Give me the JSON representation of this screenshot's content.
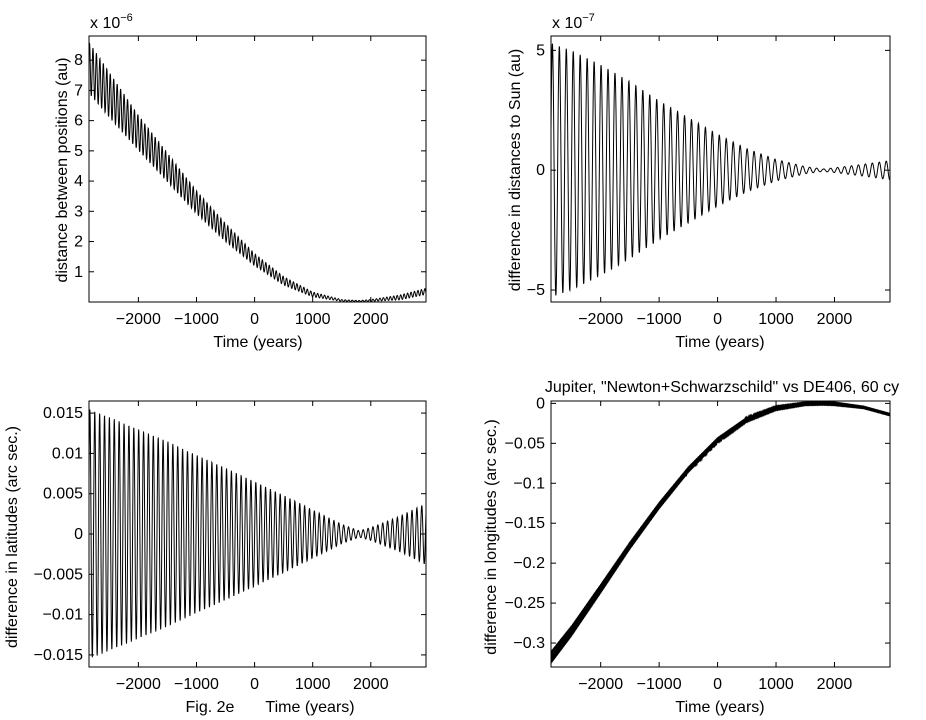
{
  "figure": {
    "caption": "Fig. 2e"
  },
  "chart_data": [
    {
      "id": "a",
      "type": "line",
      "title": "",
      "xlabel": "Time (years)",
      "ylabel": "distance between positions (au)",
      "xlim": [
        -2850,
        2950
      ],
      "ylim": [
        0,
        8.8
      ],
      "xticks": [
        -2000,
        -1000,
        0,
        1000,
        2000
      ],
      "yticks": [
        1,
        2,
        3,
        4,
        5,
        6,
        7,
        8
      ],
      "xtick_labels": [
        "−2000",
        "−1000",
        "0",
        "1000",
        "2000"
      ],
      "ytick_labels": [
        "1",
        "2",
        "3",
        "4",
        "5",
        "6",
        "7",
        "8"
      ],
      "exponent": {
        "base": "x 10",
        "power": "−6"
      },
      "oscillation_period_years": 59.5,
      "envelope": {
        "x": [
          -2850,
          -2500,
          -2000,
          -1500,
          -1000,
          -500,
          0,
          500,
          1000,
          1500,
          1800,
          2000,
          2500,
          2950
        ],
        "trend": [
          7.75,
          6.85,
          5.6,
          4.45,
          3.3,
          2.3,
          1.4,
          0.7,
          0.25,
          0.05,
          0.03,
          0.05,
          0.15,
          0.35
        ],
        "amp": [
          0.85,
          0.75,
          0.58,
          0.48,
          0.38,
          0.3,
          0.2,
          0.14,
          0.08,
          0.03,
          0.02,
          0.03,
          0.08,
          0.1
        ]
      }
    },
    {
      "id": "b",
      "type": "line",
      "title": "",
      "xlabel": "Time (years)",
      "ylabel": "difference in distances to Sun (au)",
      "xlim": [
        -2850,
        2950
      ],
      "ylim": [
        -5.5,
        5.6
      ],
      "xticks": [
        -2000,
        -1000,
        0,
        1000,
        2000
      ],
      "yticks": [
        -5,
        0,
        5
      ],
      "xtick_labels": [
        "−2000",
        "−1000",
        "0",
        "1000",
        "2000"
      ],
      "ytick_labels": [
        "−5",
        "0",
        "5"
      ],
      "exponent": {
        "base": "x 10",
        "power": "−7"
      },
      "oscillation_period_years": 119,
      "envelope": {
        "x": [
          -2850,
          -2500,
          -2000,
          -1500,
          -1000,
          -500,
          0,
          500,
          1000,
          1500,
          1800,
          2000,
          2500,
          2950
        ],
        "trend": [
          0,
          0,
          0,
          0,
          0,
          0,
          0,
          0,
          0,
          0,
          0,
          0,
          0,
          0
        ],
        "amp": [
          5.3,
          5.0,
          4.4,
          3.7,
          2.9,
          2.2,
          1.5,
          0.9,
          0.45,
          0.15,
          0.05,
          0.1,
          0.25,
          0.4
        ]
      }
    },
    {
      "id": "c",
      "type": "line",
      "title": "",
      "xlabel": "Time (years)",
      "ylabel": "difference in latitudes (arc sec.)",
      "xlim": [
        -2850,
        2950
      ],
      "ylim": [
        -0.0165,
        0.0165
      ],
      "xticks": [
        -2000,
        -1000,
        0,
        1000,
        2000
      ],
      "yticks": [
        -0.015,
        -0.01,
        -0.005,
        0,
        0.005,
        0.01,
        0.015
      ],
      "xtick_labels": [
        "−2000",
        "−1000",
        "0",
        "1000",
        "2000"
      ],
      "ytick_labels": [
        "−0.015",
        "−0.01",
        "−0.005",
        "0",
        "0.005",
        "0.01",
        "0.015"
      ],
      "oscillation_period_years": 84,
      "envelope": {
        "x": [
          -2850,
          -2500,
          -2000,
          -1500,
          -1000,
          -500,
          0,
          500,
          1000,
          1500,
          1800,
          2000,
          2500,
          2950
        ],
        "trend": [
          0,
          0,
          0,
          0,
          0,
          0,
          0,
          0,
          0,
          0,
          0,
          0,
          0,
          0
        ],
        "amp": [
          0.0155,
          0.0145,
          0.013,
          0.0115,
          0.0098,
          0.0082,
          0.0065,
          0.0048,
          0.003,
          0.0012,
          0.0004,
          0.0008,
          0.0022,
          0.0038
        ]
      }
    },
    {
      "id": "d",
      "type": "line",
      "title": "Jupiter, \"Newton+Schwarzschild\" vs DE406, 60 cy",
      "xlabel": "Time (years)",
      "ylabel": "difference in longitudes (arc sec.)",
      "xlim": [
        -2850,
        2950
      ],
      "ylim": [
        -0.33,
        0.003
      ],
      "xticks": [
        -2000,
        -1000,
        0,
        1000,
        2000
      ],
      "yticks": [
        -0.3,
        -0.25,
        -0.2,
        -0.15,
        -0.1,
        -0.05,
        0
      ],
      "xtick_labels": [
        "−2000",
        "−1000",
        "0",
        "1000",
        "2000"
      ],
      "ytick_labels": [
        "−0.3",
        "−0.25",
        "−0.2",
        "−0.15",
        "−0.1",
        "−0.05",
        "0"
      ],
      "oscillation_period_years": 12,
      "envelope": {
        "x": [
          -2850,
          -2500,
          -2000,
          -1500,
          -1000,
          -500,
          0,
          500,
          1000,
          1500,
          1800,
          2000,
          2500,
          2950
        ],
        "trend": [
          -0.318,
          -0.285,
          -0.232,
          -0.178,
          -0.128,
          -0.083,
          -0.046,
          -0.02,
          -0.006,
          -0.0005,
          0.0,
          -0.0005,
          -0.005,
          -0.014
        ],
        "amp": [
          0.008,
          0.007,
          0.006,
          0.005,
          0.0045,
          0.004,
          0.0035,
          0.003,
          0.0025,
          0.002,
          0.002,
          0.002,
          0.0015,
          0.0015
        ]
      }
    }
  ]
}
